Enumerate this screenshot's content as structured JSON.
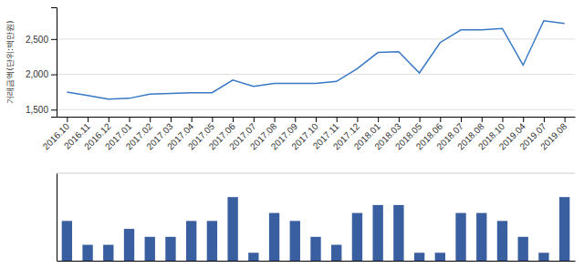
{
  "chart_data": [
    {
      "type": "line",
      "categories": [
        "2016.10",
        "2016.11",
        "2016.12",
        "2017.01",
        "2017.02",
        "2017.03",
        "2017.04",
        "2017.05",
        "2017.06",
        "2017.07",
        "2017.08",
        "2017.09",
        "2017.10",
        "2017.11",
        "2017.12",
        "2018.01",
        "2018.03",
        "2018.05",
        "2018.06",
        "2018.07",
        "2018.08",
        "2018.10",
        "2019.04",
        "2019.07",
        "2019.08"
      ],
      "values": [
        1750,
        1700,
        1650,
        1660,
        1720,
        1730,
        1740,
        1740,
        1920,
        1830,
        1870,
        1870,
        1870,
        1900,
        2080,
        2310,
        2320,
        2020,
        2450,
        2630,
        2630,
        2650,
        2130,
        2760,
        2720
      ],
      "color": "#3878c5",
      "y_label": "거래금액(단위:백만원)",
      "ylim": [
        1400,
        2950
      ],
      "yticks": [
        {
          "value": 1500,
          "label": "1,500"
        },
        {
          "value": 2000,
          "label": "2,000"
        },
        {
          "value": 2500,
          "label": "2,500"
        }
      ],
      "grid": true
    },
    {
      "type": "bar",
      "categories": [
        "2016.10",
        "2016.11",
        "2016.12",
        "2017.01",
        "2017.02",
        "2017.03",
        "2017.04",
        "2017.05",
        "2017.06",
        "2017.07",
        "2017.08",
        "2017.09",
        "2017.10",
        "2017.11",
        "2017.12",
        "2018.01",
        "2018.03",
        "2018.05",
        "2018.06",
        "2018.07",
        "2018.08",
        "2018.10",
        "2019.04",
        "2019.07",
        "2019.08"
      ],
      "values": [
        5,
        2,
        2,
        4,
        3,
        3,
        5,
        5,
        8,
        1,
        6,
        5,
        3,
        2,
        6,
        7,
        7,
        1,
        1,
        6,
        6,
        5,
        3,
        1,
        8
      ],
      "color": "#3a5fa0",
      "ylim": [
        0,
        11
      ],
      "tick_labels": false
    }
  ]
}
